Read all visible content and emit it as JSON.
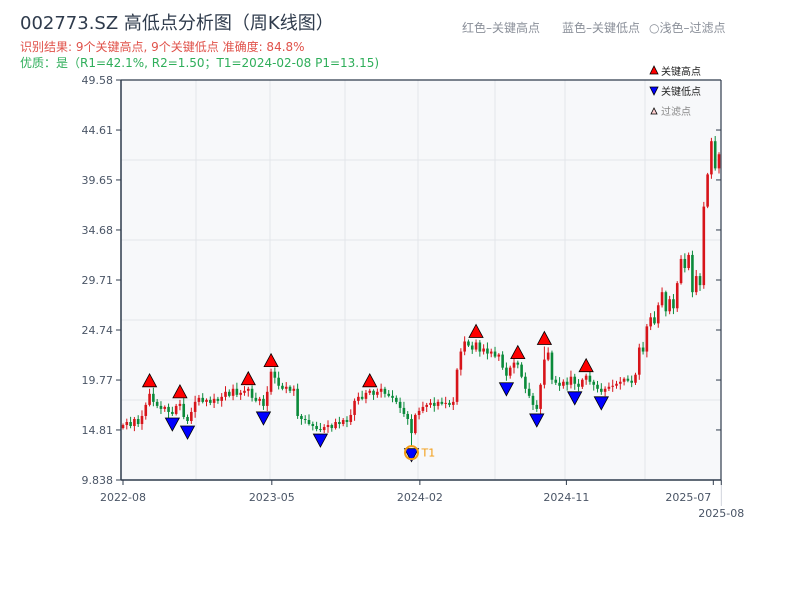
{
  "header": {
    "title": "002773.SZ 高低点分析图（周K线图）",
    "result_line": "识别结果: 9个关键高点, 9个关键低点  准确度: 84.8%",
    "quality_line": "优质：是（R1=42.1%, R2=1.50；T1=2024-02-08 P1=13.15)",
    "note_red": "红色–关键高点",
    "note_blue": "蓝色–关键低点",
    "note_filtered": "○浅色–过滤点"
  },
  "colors": {
    "up": "#d7141a",
    "down": "#0a8a3a",
    "high_marker": "#ff0000",
    "low_marker": "#0000ff",
    "t1": "#f39c12",
    "axis": "#2f3b4c",
    "plot_bg": "#f7f8fa"
  },
  "chart_data": {
    "type": "candlestick",
    "title": "002773.SZ 高低点分析图（周K线图）",
    "ylim": [
      9.838,
      49.58
    ],
    "yticks": [
      "9.838",
      "14.81",
      "19.77",
      "24.74",
      "29.71",
      "34.68",
      "39.65",
      "44.61",
      "49.58"
    ],
    "xticks": [
      {
        "label": "2022-08",
        "week": 0
      },
      {
        "label": "2023-05",
        "week": 39.2
      },
      {
        "label": "2024-02",
        "week": 78.2
      },
      {
        "label": "2024-11",
        "week": 116.8
      },
      {
        "label": "2025-07",
        "week": 155.5
      },
      {
        "label": "2025-08",
        "week": 157.6
      }
    ],
    "first_open": 15.0,
    "closes": [
      15.3,
      15.6,
      15.2,
      15.9,
      15.4,
      16.2,
      17.3,
      18.4,
      17.6,
      17.2,
      16.9,
      17.1,
      16.6,
      16.4,
      17.2,
      17.4,
      16.1,
      15.7,
      16.6,
      17.6,
      18.0,
      17.6,
      17.8,
      17.5,
      17.9,
      17.7,
      18.1,
      18.6,
      18.2,
      18.9,
      18.3,
      18.5,
      18.7,
      18.9,
      18.0,
      17.7,
      17.9,
      17.2,
      18.6,
      20.6,
      20.0,
      19.2,
      18.9,
      19.1,
      18.7,
      18.9,
      16.2,
      15.9,
      15.8,
      15.4,
      15.2,
      14.9,
      14.8,
      15.1,
      15.3,
      15.0,
      15.6,
      15.4,
      15.8,
      15.6,
      16.3,
      17.7,
      18.1,
      17.9,
      18.5,
      18.7,
      18.3,
      18.6,
      18.9,
      18.4,
      18.2,
      18.0,
      17.6,
      17.0,
      16.4,
      15.9,
      14.5,
      16.3,
      16.7,
      17.1,
      17.3,
      17.5,
      17.2,
      17.6,
      17.4,
      17.5,
      17.3,
      17.6,
      20.8,
      22.6,
      23.6,
      23.2,
      22.8,
      23.5,
      22.6,
      22.9,
      22.4,
      22.6,
      22.1,
      22.3,
      21.0,
      20.2,
      21.0,
      21.5,
      21.3,
      20.1,
      18.9,
      18.2,
      17.3,
      16.9,
      19.3,
      21.8,
      22.5,
      19.8,
      19.5,
      19.2,
      19.6,
      19.3,
      20.1,
      19.4,
      19.1,
      19.8,
      20.2,
      19.6,
      19.3,
      18.9,
      18.6,
      18.9,
      19.1,
      19.2,
      19.4,
      19.6,
      19.9,
      19.7,
      19.5,
      20.3,
      23.0,
      22.6,
      25.1,
      26.0,
      25.4,
      27.2,
      28.5,
      26.6,
      27.8,
      26.9,
      29.4,
      31.8,
      30.9,
      32.2,
      28.5,
      30.1,
      29.2,
      37.0,
      40.2,
      43.5,
      40.8,
      42.2
    ],
    "key_highs": [
      {
        "week": 7,
        "price": 18.9
      },
      {
        "week": 15,
        "price": 17.8
      },
      {
        "week": 33,
        "price": 19.1
      },
      {
        "week": 39,
        "price": 20.9
      },
      {
        "week": 65,
        "price": 18.9
      },
      {
        "week": 93,
        "price": 23.8
      },
      {
        "week": 104,
        "price": 21.7
      },
      {
        "week": 111,
        "price": 23.1
      },
      {
        "week": 122,
        "price": 20.4
      }
    ],
    "key_lows": [
      {
        "week": 13,
        "price": 16.2
      },
      {
        "week": 17,
        "price": 15.4
      },
      {
        "week": 37,
        "price": 16.8
      },
      {
        "week": 52,
        "price": 14.6
      },
      {
        "week": 76,
        "price": 13.15
      },
      {
        "week": 101,
        "price": 19.7
      },
      {
        "week": 109,
        "price": 16.6
      },
      {
        "week": 119,
        "price": 18.8
      },
      {
        "week": 126,
        "price": 18.3
      }
    ],
    "t1": {
      "label": "T1",
      "week": 76,
      "price": 13.15
    },
    "legend": {
      "position": "top-right",
      "items": [
        "关键高点",
        "关键低点",
        "过滤点"
      ]
    }
  }
}
